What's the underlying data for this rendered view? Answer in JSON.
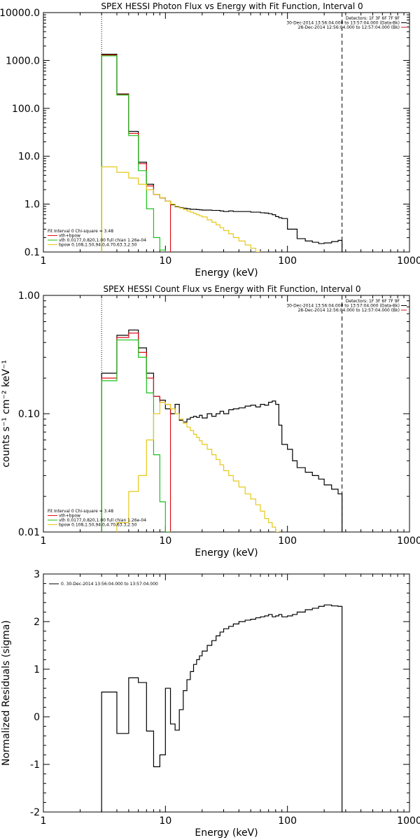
{
  "colors": {
    "data": "#000000",
    "model": "#e0101a",
    "vth": "#19c21c",
    "bpow": "#e6c81a",
    "axis": "#000000"
  },
  "chart_data": [
    {
      "type": "line",
      "title": "SPEX HESSI Photon Flux vs Energy with Fit Function, Interval 0",
      "xlabel": "Energy (keV)",
      "ylabel": "",
      "xscale": "log",
      "yscale": "log",
      "xlim": [
        1,
        1000
      ],
      "ylim": [
        0.1,
        10000
      ],
      "xticks": [
        1,
        10,
        100,
        1000
      ],
      "xtick_labels": [
        "1",
        "10",
        "100",
        "1000"
      ],
      "yticks": [
        0.1,
        1,
        10,
        100,
        1000,
        10000
      ],
      "ytick_labels": [
        "0.1",
        "1.0",
        "10.0",
        "100.0",
        "1000.0",
        "10000.0"
      ],
      "vlines": [
        {
          "x": 3,
          "style": "dotted"
        },
        {
          "x": 280,
          "style": "dashed"
        }
      ],
      "legend_top": [
        "Detectors: 1F 3F 6F 7F 9F",
        "30-Dec-2014 13:56:04.000 to 13:57:04.000 (Data-Bk)",
        "28-Dec-2014 12:56:04.000 to 12:57:04.000 (Bk)"
      ],
      "legend_top_colors": [
        "none",
        "#000000",
        "#e0101a"
      ],
      "legend_bottom": [
        "Fit Interval 0   Chi-square = 3.48",
        "vth+bpow",
        "vth 0.0177,0.820,1.00  full chian 1.26e-04",
        "bpow 0.108,1.50,94.0,4.70,63.3,2.50"
      ],
      "legend_bottom_colors": [
        "none",
        "#e0101a",
        "#19c21c",
        "#e6c81a"
      ],
      "edges": [
        3,
        4,
        5,
        6,
        7,
        8,
        9,
        10,
        11,
        12,
        13,
        14,
        15,
        16,
        17,
        18,
        19,
        20,
        22,
        24,
        26,
        28,
        30,
        33,
        36,
        40,
        45,
        50,
        55,
        60,
        65,
        70,
        75,
        80,
        85,
        90,
        100,
        110,
        120,
        140,
        160,
        180,
        200,
        230,
        260,
        280
      ],
      "series": [
        {
          "name": "",
          "color": "#000000",
          "values": [
            1350,
            200,
            33,
            7.5,
            2.6,
            1.6,
            1.35,
            1.15,
            0.97,
            0.88,
            0.85,
            0.82,
            0.8,
            0.78,
            0.78,
            0.77,
            0.76,
            0.75,
            0.75,
            0.74,
            0.74,
            0.72,
            0.7,
            0.72,
            0.7,
            0.7,
            0.7,
            0.68,
            0.68,
            0.66,
            0.65,
            0.63,
            0.6,
            0.55,
            0.52,
            0.5,
            0.3,
            0.3,
            0.19,
            0.17,
            0.16,
            0.15,
            0.155,
            0.165,
            0.175
          ]
        },
        {
          "name": "vth+bpow",
          "color": "#e0101a",
          "values": [
            1300,
            195,
            30,
            7,
            2.4,
            1.6,
            1.35,
            1.15
          ]
        },
        {
          "name": "vth",
          "color": "#19c21c",
          "values": [
            1250,
            190,
            27,
            5,
            0.8,
            0.2,
            0.11
          ]
        },
        {
          "name": "bpow",
          "color": "#e6c81a",
          "values": [
            6,
            4.6,
            3.5,
            2.6,
            2.0,
            1.6,
            1.35,
            1.15,
            1.0,
            0.9,
            0.83,
            0.77,
            0.72,
            0.68,
            0.64,
            0.6,
            0.57,
            0.54,
            0.47,
            0.42,
            0.37,
            0.32,
            0.28,
            0.24,
            0.2,
            0.17,
            0.14,
            0.12,
            0.1
          ]
        }
      ]
    },
    {
      "type": "line",
      "title": "SPEX HESSI Count Flux vs Energy with Fit Function, Interval 0",
      "xlabel": "Energy (keV)",
      "ylabel": "counts s⁻¹ cm⁻² keV⁻¹",
      "xscale": "log",
      "yscale": "log",
      "xlim": [
        1,
        1000
      ],
      "ylim": [
        0.01,
        1
      ],
      "xticks": [
        1,
        10,
        100,
        1000
      ],
      "xtick_labels": [
        "1",
        "10",
        "100",
        "1000"
      ],
      "yticks": [
        0.01,
        0.1,
        1
      ],
      "ytick_labels": [
        "0.01",
        "0.10",
        "1.00"
      ],
      "vlines": [
        {
          "x": 3,
          "style": "dotted"
        },
        {
          "x": 280,
          "style": "dashed"
        }
      ],
      "legend_top": [
        "Detectors: 1F 3F 6F 7F 9F",
        "30-Dec-2014 13:56:04.000 to 13:57:04.000 (Data-Bk)",
        "28-Dec-2014 12:56:04.000 to 12:57:04.000 (Bk)"
      ],
      "legend_top_colors": [
        "none",
        "#000000",
        "#e0101a"
      ],
      "legend_bottom": [
        "Fit Interval 0   Chi-square = 3.48",
        "vth+bpow",
        "vth 0.0177,0.820,1.00  full chian 1.26e-04",
        "bpow 0.108,1.50,94.0,4.70,63.3,2.50"
      ],
      "legend_bottom_colors": [
        "none",
        "#e0101a",
        "#19c21c",
        "#e6c81a"
      ],
      "edges": [
        3,
        4,
        5,
        6,
        7,
        8,
        9,
        10,
        11,
        12,
        13,
        14,
        15,
        16,
        17,
        18,
        19,
        20,
        22,
        24,
        26,
        28,
        30,
        33,
        36,
        40,
        45,
        50,
        55,
        60,
        65,
        70,
        75,
        80,
        85,
        90,
        100,
        110,
        120,
        140,
        160,
        180,
        200,
        230,
        260,
        280
      ],
      "series": [
        {
          "name": "",
          "color": "#000000",
          "values": [
            0.22,
            0.46,
            0.51,
            0.36,
            0.22,
            0.14,
            0.13,
            0.11,
            0.1,
            0.12,
            0.088,
            0.085,
            0.09,
            0.093,
            0.095,
            0.093,
            0.097,
            0.092,
            0.1,
            0.095,
            0.1,
            0.105,
            0.1,
            0.108,
            0.11,
            0.112,
            0.116,
            0.118,
            0.114,
            0.12,
            0.118,
            0.125,
            0.128,
            0.12,
            0.08,
            0.055,
            0.05,
            0.04,
            0.035,
            0.032,
            0.03,
            0.028,
            0.025,
            0.023,
            0.021
          ]
        },
        {
          "name": "vth+bpow",
          "color": "#e0101a",
          "values": [
            0.2,
            0.44,
            0.48,
            0.33,
            0.2,
            0.14,
            0.125,
            0.12
          ]
        },
        {
          "name": "vth",
          "color": "#19c21c",
          "values": [
            0.19,
            0.42,
            0.42,
            0.3,
            0.15,
            0.045,
            0.018,
            0.01
          ]
        },
        {
          "name": "bpow",
          "color": "#e6c81a",
          "values": [
            0.0045,
            0.012,
            0.022,
            0.03,
            0.06,
            0.1,
            0.125,
            0.12,
            0.11,
            0.1,
            0.09,
            0.083,
            0.077,
            0.072,
            0.067,
            0.063,
            0.059,
            0.055,
            0.05,
            0.045,
            0.041,
            0.037,
            0.033,
            0.03,
            0.027,
            0.024,
            0.021,
            0.019,
            0.017,
            0.015,
            0.013,
            0.012,
            0.011,
            0.01
          ]
        }
      ]
    },
    {
      "type": "line",
      "title": "",
      "xlabel": "Energy (keV)",
      "ylabel": "Normalized Residuals (sigma)",
      "xscale": "log",
      "yscale": "linear",
      "xlim": [
        1,
        1000
      ],
      "ylim": [
        -2,
        3
      ],
      "xticks": [
        1,
        10,
        100,
        1000
      ],
      "xtick_labels": [
        "1",
        "10",
        "100",
        "1000"
      ],
      "yticks": [
        -2,
        -1,
        0,
        1,
        2,
        3
      ],
      "ytick_labels": [
        "-2",
        "-1",
        "0",
        "1",
        "2",
        "3"
      ],
      "vlines": [],
      "legend_top": [],
      "legend_top_colors": [],
      "legend_bottom": [],
      "legend_bottom_colors": [],
      "legend_left": "0. 30-Dec-2014 13:56:04.000 to 13:57:04.000",
      "edges": [
        3,
        4,
        5,
        6,
        7,
        8,
        9,
        10,
        11,
        12,
        13,
        14,
        15,
        16,
        17,
        18,
        19,
        20,
        22,
        24,
        26,
        28,
        30,
        33,
        36,
        40,
        45,
        50,
        55,
        60,
        65,
        70,
        75,
        80,
        85,
        90,
        100,
        110,
        120,
        140,
        160,
        180,
        200,
        230,
        260,
        280
      ],
      "series": [
        {
          "name": "",
          "color": "#000000",
          "values": [
            0.52,
            -0.35,
            0.82,
            0.72,
            -0.3,
            -1.05,
            -0.8,
            0.6,
            -0.15,
            -0.28,
            0.15,
            0.55,
            0.78,
            0.95,
            1.1,
            1.2,
            1.28,
            1.38,
            1.5,
            1.6,
            1.7,
            1.78,
            1.85,
            1.9,
            1.95,
            2.0,
            2.03,
            2.05,
            2.08,
            2.1,
            2.12,
            2.15,
            2.1,
            2.12,
            2.15,
            2.1,
            2.12,
            2.15,
            2.2,
            2.25,
            2.28,
            2.32,
            2.35,
            2.33,
            2.32
          ]
        }
      ]
    }
  ]
}
